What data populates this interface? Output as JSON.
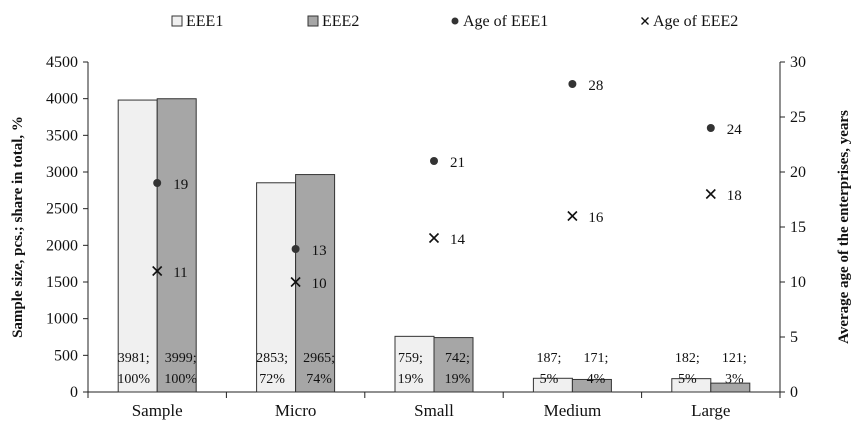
{
  "chart_data": {
    "type": "bar",
    "categories": [
      "Sample",
      "Micro",
      "Small",
      "Medium",
      "Large"
    ],
    "series": [
      {
        "name": "EEE1",
        "kind": "bar",
        "axis": "left",
        "color": "#f0f0f0",
        "values": [
          3981,
          2853,
          759,
          187,
          182
        ]
      },
      {
        "name": "EEE2",
        "kind": "bar",
        "axis": "left",
        "color": "#a6a6a6",
        "values": [
          3999,
          2965,
          742,
          171,
          121
        ]
      },
      {
        "name": "Age of EEE1",
        "kind": "scatter",
        "marker": "dot",
        "axis": "right",
        "color": "#333333",
        "values": [
          19,
          13,
          21,
          28,
          24
        ]
      },
      {
        "name": "Age of EEE2",
        "kind": "scatter",
        "marker": "x",
        "axis": "right",
        "color": "#111111",
        "values": [
          11,
          10,
          14,
          16,
          18
        ]
      }
    ],
    "bar_labels": {
      "EEE1": [
        [
          "3981;",
          "100%"
        ],
        [
          "2853;",
          "72%"
        ],
        [
          "759;",
          "19%"
        ],
        [
          "187;",
          "5%"
        ],
        [
          "182;",
          "5%"
        ]
      ],
      "EEE2": [
        [
          "3999;",
          "100%"
        ],
        [
          "2965;",
          "74%"
        ],
        [
          "742;",
          "19%"
        ],
        [
          "171;",
          "4%"
        ],
        [
          "121;",
          "3%"
        ]
      ]
    },
    "ylabel": "Sample size, pcs.; share in total, %",
    "y2label": "Average age of the enterprises, years",
    "ylim": [
      0,
      4500
    ],
    "yticks": [
      0,
      500,
      1000,
      1500,
      2000,
      2500,
      3000,
      3500,
      4000,
      4500
    ],
    "y2lim": [
      0,
      30
    ],
    "y2ticks": [
      0,
      5,
      10,
      15,
      20,
      25,
      30
    ],
    "grid": false,
    "legend": "top-center"
  }
}
